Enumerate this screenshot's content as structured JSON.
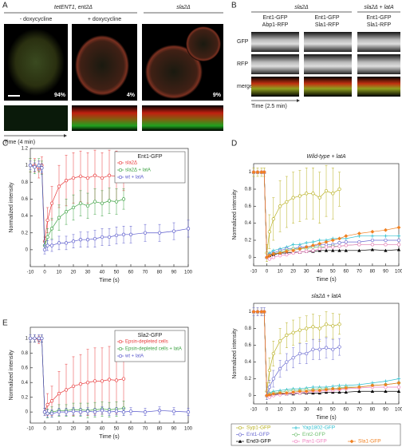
{
  "panel_a": {
    "letter": "A",
    "group_left": "tetENT1, ent2Δ",
    "group_right": "sla2Δ",
    "conditions": [
      "- doxycycline",
      "+ doxycycline"
    ],
    "percentages": [
      "94%",
      "4%",
      "9%"
    ],
    "time_label": "Time (4 min)"
  },
  "panel_b": {
    "letter": "B",
    "groups": [
      "sla2Δ",
      "sla2Δ + latA"
    ],
    "columns": [
      [
        "Ent1-GFP",
        "Abp1-RFP"
      ],
      [
        "Ent1-GFP",
        "Sla1-RFP"
      ],
      [
        "Ent1-GFP",
        "Sla1-RFP"
      ]
    ],
    "rows": [
      "GFP",
      "RFP",
      "merge"
    ],
    "time_label": "Time (2.5 min)"
  },
  "panel_letters": [
    "C",
    "D",
    "E"
  ],
  "chart_data": [
    {
      "type": "line",
      "xlabel": "Time (s)",
      "ylabel": "Normalized intensity",
      "legend_title": "Ent1-GFP",
      "legend": "upper right",
      "x": [
        -10,
        -7,
        -4,
        -2,
        0,
        2,
        5,
        10,
        15,
        20,
        25,
        30,
        35,
        40,
        45,
        50,
        55,
        60,
        70,
        80,
        90,
        100
      ],
      "xlim": [
        -10,
        100
      ],
      "xticks": [
        -10,
        0,
        10,
        20,
        30,
        40,
        50,
        60,
        70,
        80,
        90,
        100
      ],
      "ylim": [
        -0.2,
        1.2
      ],
      "yticks": [
        0,
        0.2,
        0.4,
        0.6,
        0.8,
        1,
        1.2
      ],
      "series": [
        {
          "name": "sla2Δ",
          "color": "#e8393a",
          "marker": "circle",
          "values": [
            1.0,
            1.0,
            0.95,
            1.0,
            0.1,
            0.35,
            0.55,
            0.75,
            0.82,
            0.85,
            0.87,
            0.85,
            0.88,
            0.85,
            0.88,
            0.87,
            0.9,
            null,
            null,
            null,
            null,
            null
          ],
          "errors": [
            0.08,
            0.08,
            0.1,
            0.1,
            0.05,
            0.15,
            0.2,
            0.25,
            0.3,
            0.3,
            0.3,
            0.3,
            0.3,
            0.3,
            0.3,
            0.3,
            0.2,
            null,
            null,
            null,
            null,
            null
          ]
        },
        {
          "name": "sla2Δ + latA",
          "color": "#3aa040",
          "marker": "circle",
          "values": [
            1.0,
            0.98,
            1.0,
            0.97,
            0.05,
            0.15,
            0.25,
            0.38,
            0.45,
            0.5,
            0.55,
            0.52,
            0.57,
            0.55,
            0.58,
            0.57,
            0.6,
            null,
            null,
            null,
            null,
            null
          ],
          "errors": [
            0.08,
            0.08,
            0.08,
            0.08,
            0.05,
            0.1,
            0.12,
            0.15,
            0.15,
            0.15,
            0.15,
            0.15,
            0.15,
            0.15,
            0.15,
            0.15,
            0.12,
            null,
            null,
            null,
            null,
            null
          ]
        },
        {
          "name": "wt + latA",
          "color": "#5a5acc",
          "marker": "circle",
          "values": [
            1.0,
            0.98,
            1.0,
            0.97,
            0.0,
            0.05,
            0.05,
            0.08,
            0.08,
            0.1,
            0.12,
            0.12,
            0.13,
            0.15,
            0.15,
            0.17,
            0.18,
            0.18,
            0.2,
            0.2,
            0.22,
            0.25
          ],
          "errors": [
            0.05,
            0.05,
            0.05,
            0.05,
            0.05,
            0.06,
            0.07,
            0.08,
            0.08,
            0.08,
            0.09,
            0.09,
            0.1,
            0.1,
            0.1,
            0.1,
            0.1,
            0.1,
            0.1,
            0.1,
            0.1,
            0.1
          ]
        }
      ]
    },
    {
      "type": "line",
      "title": "Wild-type + latA",
      "xlabel": "Time (s)",
      "ylabel": "Normalized intensity",
      "x": [
        -10,
        -7,
        -4,
        -2,
        0,
        2,
        5,
        10,
        15,
        20,
        25,
        30,
        35,
        40,
        45,
        50,
        55,
        60,
        70,
        80,
        90,
        100
      ],
      "xlim": [
        -10,
        100
      ],
      "xticks": [
        -10,
        0,
        10,
        20,
        30,
        40,
        50,
        60,
        70,
        80,
        90,
        100
      ],
      "ylim": [
        -0.1,
        1.1
      ],
      "yticks": [
        0,
        0.2,
        0.4,
        0.6,
        0.8,
        1
      ],
      "series": [
        {
          "color": "#b8b020",
          "marker": "circle",
          "values": [
            1,
            1,
            1,
            1,
            0.05,
            0.3,
            0.45,
            0.6,
            0.65,
            0.7,
            0.72,
            0.75,
            0.75,
            0.7,
            0.78,
            0.75,
            0.8,
            null,
            null,
            null,
            null,
            null
          ],
          "errors": [
            0.05,
            0.05,
            0.05,
            0.05,
            0.1,
            0.2,
            0.25,
            0.3,
            0.3,
            0.3,
            0.3,
            0.3,
            0.3,
            0.3,
            0.3,
            0.3,
            0.2,
            null,
            null,
            null,
            null,
            null
          ]
        },
        {
          "color": "#30c0d0",
          "marker": "plus",
          "values": [
            1,
            1,
            1,
            1,
            0,
            0.05,
            0.08,
            0.1,
            0.12,
            0.15,
            0.15,
            0.17,
            0.18,
            0.2,
            0.2,
            0.22,
            0.22,
            0.22,
            0.25,
            0.25,
            0.25,
            0.25
          ]
        },
        {
          "color": "#6a6ad0",
          "marker": "circle",
          "values": [
            1,
            1,
            1,
            1,
            0,
            0.03,
            0.05,
            0.08,
            0.1,
            0.1,
            0.12,
            0.12,
            0.13,
            0.15,
            0.15,
            0.15,
            0.17,
            0.18,
            0.18,
            0.2,
            0.2,
            0.2
          ]
        },
        {
          "color": "#70c070",
          "marker": "circle",
          "values": [
            1,
            1,
            1,
            1,
            0,
            0.02,
            0.04,
            0.06,
            0.08,
            0.1,
            0.1,
            0.1,
            0.12,
            0.12,
            0.12,
            0.13,
            0.13,
            0.14,
            0.15,
            0.15,
            0.15,
            0.15
          ]
        },
        {
          "color": "#000000",
          "marker": "triangle",
          "values": [
            1,
            1,
            1,
            1,
            0,
            0.02,
            0.03,
            0.05,
            0.05,
            0.06,
            0.06,
            0.07,
            0.07,
            0.08,
            0.08,
            0.08,
            0.08,
            0.08,
            0.08,
            0.09,
            0.08,
            0.09
          ]
        },
        {
          "color": "#f080c0",
          "marker": "circle",
          "values": [
            1,
            1,
            1,
            1,
            0,
            -0.02,
            0,
            0.02,
            0.03,
            0.05,
            0.06,
            0.07,
            0.08,
            0.1,
            0.12,
            0.12,
            0.13,
            0.14,
            0.15,
            0.15,
            0.15,
            0.15
          ]
        },
        {
          "color": "#f08020",
          "marker": "diamond",
          "values": [
            1,
            1,
            1,
            1,
            0,
            0.02,
            0.04,
            0.05,
            0.07,
            0.08,
            0.1,
            0.12,
            0.14,
            0.16,
            0.18,
            0.2,
            0.22,
            0.25,
            0.28,
            0.3,
            0.32,
            0.35
          ]
        }
      ]
    },
    {
      "type": "line",
      "title": "sla2Δ + latA",
      "xlabel": "Time (s)",
      "ylabel": "Normalized intensity",
      "legend": "below",
      "x": [
        -10,
        -7,
        -4,
        -2,
        0,
        2,
        5,
        10,
        15,
        20,
        25,
        30,
        35,
        40,
        45,
        50,
        55,
        60,
        70,
        80,
        90,
        100
      ],
      "xlim": [
        -10,
        100
      ],
      "xticks": [
        -10,
        0,
        10,
        20,
        30,
        40,
        50,
        60,
        70,
        80,
        90,
        100
      ],
      "ylim": [
        -0.1,
        1.1
      ],
      "yticks": [
        0,
        0.2,
        0.4,
        0.6,
        0.8,
        1
      ],
      "series": [
        {
          "name": "Syp1-GFP",
          "color": "#b8b020",
          "marker": "circle",
          "values": [
            1,
            1,
            1,
            1,
            0.05,
            0.3,
            0.5,
            0.65,
            0.72,
            0.75,
            0.78,
            0.8,
            0.82,
            0.8,
            0.85,
            0.83,
            0.85,
            null,
            null,
            null,
            null,
            null
          ],
          "errors": [
            0.05,
            0.05,
            0.05,
            0.05,
            0.1,
            0.15,
            0.15,
            0.15,
            0.15,
            0.15,
            0.15,
            0.15,
            0.15,
            0.15,
            0.15,
            0.15,
            0.12,
            null,
            null,
            null,
            null,
            null
          ]
        },
        {
          "name": "Yap1802-GFP",
          "color": "#30c0d0",
          "marker": "plus",
          "values": [
            1,
            1,
            1,
            1,
            0,
            0.03,
            0.05,
            0.06,
            0.07,
            0.08,
            0.08,
            0.09,
            0.1,
            0.1,
            0.1,
            0.11,
            0.12,
            0.12,
            0.13,
            0.15,
            0.17,
            0.2
          ]
        },
        {
          "name": "Ent1-GFP",
          "color": "#6a6ad0",
          "marker": "circle",
          "values": [
            1,
            1,
            1,
            1,
            0,
            0.1,
            0.2,
            0.32,
            0.4,
            0.45,
            0.5,
            0.5,
            0.55,
            0.55,
            0.57,
            0.55,
            0.58,
            null,
            null,
            null,
            null,
            null
          ],
          "errors": [
            0.05,
            0.05,
            0.05,
            0.05,
            0.05,
            0.08,
            0.1,
            0.1,
            0.1,
            0.12,
            0.12,
            0.12,
            0.12,
            0.12,
            0.12,
            0.12,
            0.1,
            null,
            null,
            null,
            null,
            null
          ]
        },
        {
          "name": "Ent2-GFP",
          "color": "#70c070",
          "marker": "circle",
          "values": [
            1,
            1,
            1,
            1,
            0,
            0.02,
            0.03,
            0.04,
            0.05,
            0.06,
            0.06,
            0.07,
            0.07,
            0.08,
            0.08,
            0.08,
            0.09,
            0.1,
            0.1,
            0.12,
            0.13,
            0.15
          ]
        },
        {
          "name": "End3-GFP",
          "color": "#000000",
          "marker": "triangle",
          "values": [
            1,
            1,
            1,
            1,
            0,
            0,
            0.01,
            0.02,
            0.02,
            0.02,
            0.03,
            0.03,
            0.03,
            0.03,
            0.04,
            0.04,
            0.04,
            0.04,
            0.05,
            0.05,
            0.05,
            0.05
          ]
        },
        {
          "name": "Pan1-GFP",
          "color": "#f080c0",
          "marker": "circle",
          "values": [
            1,
            1,
            1,
            1,
            0,
            -0.02,
            0,
            0.01,
            0.02,
            0.03,
            0.03,
            0.04,
            0.05,
            0.05,
            0.06,
            0.06,
            0.07,
            0.08,
            0.09,
            0.1,
            0.1,
            0.1
          ]
        },
        {
          "name": "Sla1-GFP",
          "color": "#f08020",
          "marker": "diamond",
          "values": [
            1,
            1,
            1,
            1,
            0,
            0.01,
            0.02,
            0.03,
            0.03,
            0.04,
            0.05,
            0.05,
            0.06,
            0.06,
            0.07,
            0.08,
            0.08,
            0.09,
            0.1,
            0.12,
            0.13,
            0.15
          ]
        }
      ]
    },
    {
      "type": "line",
      "xlabel": "Time (s)",
      "ylabel": "Normalized intensity",
      "legend_title": "Sla2-GFP",
      "legend": "upper right",
      "x": [
        -10,
        -7,
        -4,
        -2,
        0,
        2,
        5,
        10,
        15,
        20,
        25,
        30,
        35,
        40,
        45,
        50,
        55,
        60,
        70,
        80,
        90,
        100
      ],
      "xlim": [
        -10,
        100
      ],
      "xticks": [
        -10,
        0,
        10,
        20,
        30,
        40,
        50,
        60,
        70,
        80,
        90,
        100
      ],
      "ylim": [
        -0.15,
        1.15
      ],
      "yticks": [
        0,
        0.2,
        0.4,
        0.6,
        0.8,
        1
      ],
      "series": [
        {
          "name": "Epsin-depleted cells",
          "color": "#e8393a",
          "marker": "circle",
          "values": [
            1.0,
            1.0,
            0.98,
            1.0,
            0.0,
            0.1,
            0.15,
            0.25,
            0.3,
            0.35,
            0.38,
            0.4,
            0.42,
            0.42,
            0.44,
            0.43,
            0.45,
            null,
            null,
            null,
            null,
            null
          ],
          "errors": [
            0.05,
            0.05,
            0.05,
            0.05,
            0.05,
            0.15,
            0.2,
            0.3,
            0.35,
            0.4,
            0.4,
            0.45,
            0.45,
            0.45,
            0.45,
            0.45,
            0.4,
            null,
            null,
            null,
            null,
            null
          ]
        },
        {
          "name": "Epsin-depleted cells + latA",
          "color": "#3aa040",
          "marker": "circle",
          "values": [
            1,
            1,
            1,
            1,
            0,
            -0.02,
            0,
            0.02,
            0.02,
            0.03,
            0.03,
            0.02,
            0.03,
            0.04,
            0.03,
            0.04,
            0.05,
            null,
            null,
            null,
            null,
            null
          ],
          "errors": [
            0.05,
            0.05,
            0.05,
            0.05,
            0.05,
            0.06,
            0.07,
            0.08,
            0.08,
            0.09,
            0.09,
            0.1,
            0.1,
            0.1,
            0.1,
            0.1,
            0.1,
            null,
            null,
            null,
            null,
            null
          ]
        },
        {
          "name": "wt + latA",
          "color": "#5a5acc",
          "marker": "circle",
          "values": [
            1,
            1,
            1,
            1,
            0,
            -0.02,
            -0.02,
            0,
            0,
            0.01,
            0,
            0.01,
            0,
            0.02,
            0,
            0.01,
            0,
            0.01,
            0,
            0.02,
            0.01,
            0.0
          ],
          "errors": [
            0.05,
            0.05,
            0.05,
            0.05,
            0.05,
            0.05,
            0.05,
            0.05,
            0.05,
            0.05,
            0.05,
            0.05,
            0.05,
            0.05,
            0.05,
            0.05,
            0.05,
            0.05,
            0.05,
            0.05,
            0.05,
            0.05
          ]
        }
      ]
    }
  ]
}
